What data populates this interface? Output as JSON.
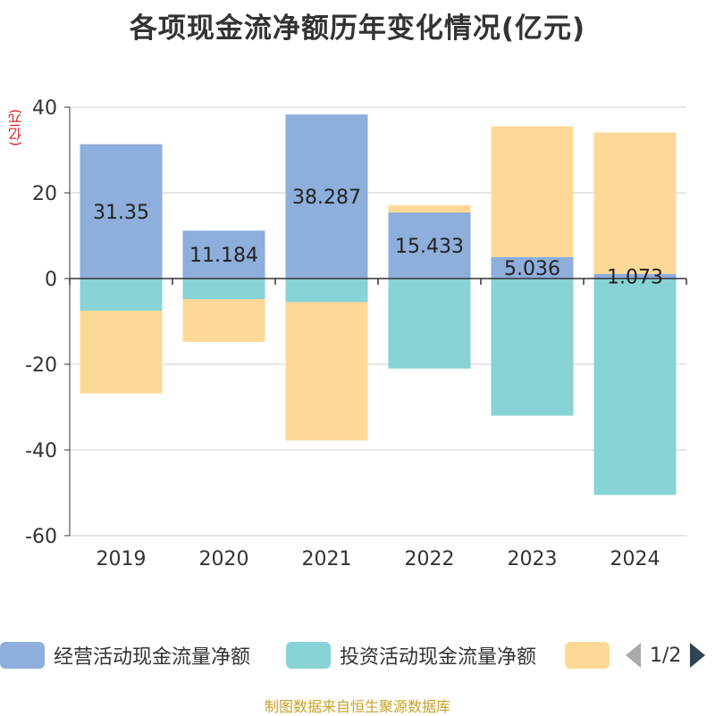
{
  "title": "各项现金流净额历年变化情况(亿元)",
  "unit_label": "(亿元)",
  "source": "制图数据来自恒生聚源数据库",
  "pager": {
    "text": "1/2"
  },
  "colors": {
    "operating": "#8eaedb",
    "investing": "#87d3d6",
    "financing": "#fed896",
    "axis": "#333333",
    "grid": "#cccccc"
  },
  "chart_data": {
    "type": "bar",
    "stacked": true,
    "title": "各项现金流净额历年变化情况(亿元)",
    "ylabel": "(亿元)",
    "categories": [
      "2019",
      "2020",
      "2021",
      "2022",
      "2023",
      "2024"
    ],
    "ylim": [
      -60,
      40
    ],
    "yticks": [
      40,
      20,
      0,
      -20,
      -40,
      -60
    ],
    "series": [
      {
        "name": "经营活动现金流量净额",
        "color_key": "operating",
        "values": [
          31.35,
          11.184,
          38.287,
          15.433,
          5.036,
          1.073
        ],
        "labels": [
          "31.35",
          "11.184",
          "38.287",
          "15.433",
          "5.036",
          "1.073"
        ]
      },
      {
        "name": "投资活动现金流量净额",
        "color_key": "investing",
        "values": [
          -7.5,
          -4.8,
          -5.5,
          -21.0,
          -32.0,
          -50.5
        ]
      },
      {
        "name": "",
        "color_key": "financing",
        "values": [
          -19.3,
          -10.0,
          -32.3,
          1.7,
          30.5,
          33.0
        ]
      }
    ],
    "legend": [
      "经营活动现金流量净额",
      "投资活动现金流量净额",
      ""
    ]
  }
}
